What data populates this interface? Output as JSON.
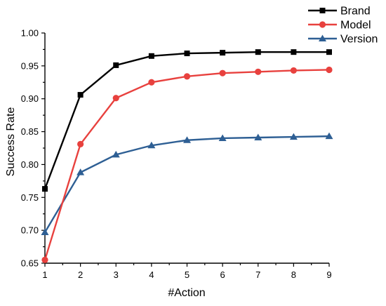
{
  "chart_data": {
    "type": "line",
    "title": "",
    "xlabel": "#Action",
    "ylabel": "Success Rate",
    "x": [
      1,
      2,
      3,
      4,
      5,
      6,
      7,
      8,
      9
    ],
    "xticks": [
      "1",
      "2",
      "3",
      "4",
      "5",
      "6",
      "7",
      "8",
      "9"
    ],
    "xlim": [
      1,
      9
    ],
    "ylim": [
      0.65,
      1.0
    ],
    "yticks": [
      "0.65",
      "0.70",
      "0.75",
      "0.80",
      "0.85",
      "0.90",
      "0.95",
      "1.00"
    ],
    "grid": false,
    "legend_position": "top-right",
    "series": [
      {
        "name": "Brand",
        "color": "#000000",
        "marker": "square",
        "values": [
          0.763,
          0.906,
          0.951,
          0.965,
          0.969,
          0.97,
          0.971,
          0.971,
          0.971
        ]
      },
      {
        "name": "Model",
        "color": "#e8413e",
        "marker": "circle",
        "values": [
          0.655,
          0.831,
          0.901,
          0.925,
          0.934,
          0.939,
          0.941,
          0.943,
          0.944
        ]
      },
      {
        "name": "Version",
        "color": "#2e5f94",
        "marker": "triangle",
        "values": [
          0.697,
          0.788,
          0.815,
          0.829,
          0.837,
          0.84,
          0.841,
          0.842,
          0.843
        ]
      }
    ]
  }
}
